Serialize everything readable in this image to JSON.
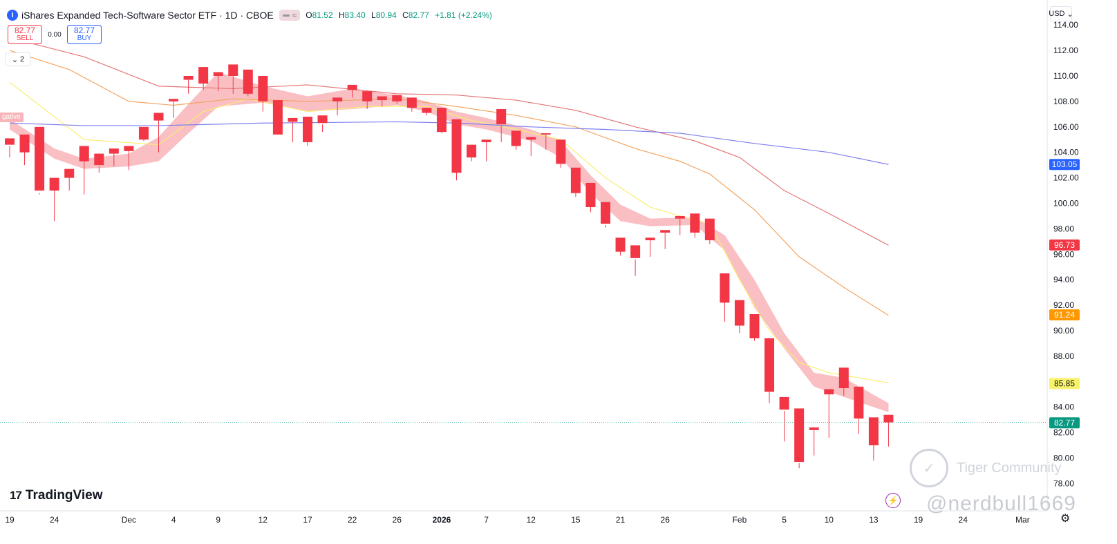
{
  "header": {
    "info_icon": "info-icon",
    "title": "iShares Expanded Tech-Software Sector ETF · 1D · CBOE",
    "chip_glyph": "≈",
    "ohlc": {
      "o_label": "O",
      "o": "81.52",
      "h_label": "H",
      "h": "83.40",
      "l_label": "L",
      "l": "80.94",
      "c_label": "C",
      "c": "82.77",
      "change": "+1.81 (+2.24%)"
    }
  },
  "trade": {
    "sell_price": "82.77",
    "sell_label": "SELL",
    "spread": "0.00",
    "buy_price": "82.77",
    "buy_label": "BUY"
  },
  "indicator_toggle": {
    "count": "2",
    "icon": "chevron-down-icon"
  },
  "currency": {
    "label": "USD",
    "icon": "chevron-down-icon"
  },
  "negative_tag": "gative",
  "branding": {
    "logo_mark": "17",
    "logo_text": "TradingView"
  },
  "watermark": {
    "text": "Tiger Community",
    "handle": "@nerdbull1669"
  },
  "colors": {
    "up": "#089981",
    "down": "#f23645",
    "band": "#f8b4b9",
    "ma_yellow": "#f9ee72",
    "ma_orange": "#f4a460",
    "ma_red": "#e57373",
    "ma_blue": "#7e7ef0",
    "tag_blue": "#2962ff",
    "tag_red": "#f23645",
    "tag_orange": "#ff9800",
    "tag_yellow": "#f9f36b"
  },
  "chart_data": {
    "type": "candlestick",
    "y_axis": {
      "range": [
        77.5,
        115
      ],
      "ticks": [
        "78.00",
        "80.00",
        "82.00",
        "84.00",
        "86.00",
        "88.00",
        "90.00",
        "92.00",
        "94.00",
        "96.00",
        "98.00",
        "100.00",
        "102.00",
        "104.00",
        "106.00",
        "108.00",
        "110.00",
        "112.00",
        "114.00"
      ]
    },
    "x_axis": {
      "ticks": [
        {
          "label": "19",
          "i": 0
        },
        {
          "label": "24",
          "i": 3
        },
        {
          "label": "Dec",
          "i": 8
        },
        {
          "label": "4",
          "i": 11
        },
        {
          "label": "9",
          "i": 14
        },
        {
          "label": "12",
          "i": 17
        },
        {
          "label": "17",
          "i": 20
        },
        {
          "label": "22",
          "i": 23
        },
        {
          "label": "26",
          "i": 26
        },
        {
          "label": "2026",
          "i": 29
        },
        {
          "label": "7",
          "i": 32
        },
        {
          "label": "12",
          "i": 35
        },
        {
          "label": "15",
          "i": 38
        },
        {
          "label": "21",
          "i": 41
        },
        {
          "label": "26",
          "i": 44
        },
        {
          "label": "Feb",
          "i": 49
        },
        {
          "label": "5",
          "i": 52
        },
        {
          "label": "10",
          "i": 55
        },
        {
          "label": "13",
          "i": 58
        },
        {
          "label": "19",
          "i": 61
        },
        {
          "label": "24",
          "i": 64
        },
        {
          "label": "Mar",
          "i": 68
        }
      ]
    },
    "candles": [
      [
        null,
        105.1,
        103.6,
        104.5,
        104.6
      ],
      [
        104.6,
        105.4,
        103.0,
        104.4,
        104.0
      ],
      [
        105.4,
        106.0,
        100.7,
        100.8,
        101.0
      ],
      [
        100.8,
        102.0,
        98.6,
        101.0,
        101.0
      ],
      [
        101.2,
        102.7,
        101.0,
        102.3,
        102.0
      ],
      [
        101.5,
        104.5,
        100.7,
        103.3,
        103.3
      ],
      [
        103.9,
        103.9,
        102.4,
        102.9,
        103.0
      ],
      [
        103.3,
        104.3,
        102.9,
        104.2,
        103.9
      ],
      [
        103.3,
        104.5,
        102.6,
        104.3,
        104.1
      ],
      [
        105.0,
        106.0,
        104.9,
        105.2,
        105.0
      ],
      [
        104.5,
        107.1,
        104.0,
        106.6,
        106.5
      ],
      [
        107.4,
        108.2,
        106.7,
        108.1,
        108.0
      ],
      [
        108.7,
        110.0,
        108.6,
        109.8,
        109.7
      ],
      [
        110.1,
        110.7,
        108.9,
        109.4,
        109.4
      ],
      [
        109.0,
        110.3,
        108.8,
        110.0,
        110.0
      ],
      [
        109.6,
        110.9,
        108.6,
        110.1,
        110.0
      ],
      [
        109.8,
        110.5,
        108.4,
        108.7,
        108.6
      ],
      [
        109.8,
        110.0,
        107.2,
        108.1,
        108.0
      ],
      [
        108.0,
        108.1,
        105.4,
        105.5,
        105.4
      ],
      [
        105.1,
        106.7,
        104.8,
        106.5,
        106.4
      ],
      [
        106.5,
        106.8,
        104.5,
        104.8,
        104.8
      ],
      [
        106.0,
        106.9,
        105.6,
        106.2,
        106.3
      ],
      [
        107.1,
        108.3,
        106.9,
        108.1,
        108.0
      ],
      [
        108.4,
        109.3,
        108.3,
        109.0,
        108.9
      ],
      [
        108.4,
        108.8,
        107.4,
        108.0,
        108.0
      ],
      [
        107.8,
        108.4,
        107.6,
        108.1,
        108.1
      ],
      [
        108.1,
        108.5,
        107.8,
        108.1,
        108.0
      ],
      [
        107.4,
        108.3,
        107.2,
        107.5,
        107.5
      ],
      [
        107.4,
        107.5,
        106.9,
        107.1,
        107.1
      ],
      [
        107.0,
        107.5,
        105.5,
        105.6,
        105.6
      ],
      [
        106.5,
        106.6,
        101.8,
        102.5,
        102.4
      ],
      [
        103.5,
        104.6,
        103.3,
        103.6,
        103.6
      ],
      [
        103.4,
        105.0,
        103.3,
        104.9,
        104.8
      ],
      [
        105.0,
        107.4,
        104.8,
        106.1,
        106.2
      ],
      [
        105.6,
        105.7,
        104.2,
        104.5,
        104.5
      ],
      [
        104.4,
        105.2,
        103.7,
        105.0,
        105.0
      ],
      [
        104.3,
        105.5,
        104.2,
        105.4,
        105.4
      ],
      [
        104.9,
        105.0,
        102.8,
        103.2,
        103.1
      ],
      [
        102.8,
        102.8,
        100.5,
        100.8,
        100.8
      ],
      [
        101.5,
        101.6,
        99.3,
        99.7,
        99.7
      ],
      [
        100.0,
        100.1,
        98.1,
        98.3,
        98.4
      ],
      [
        96.6,
        97.3,
        95.9,
        96.2,
        96.2
      ],
      [
        96.4,
        96.7,
        94.3,
        95.6,
        95.7
      ],
      [
        96.6,
        97.3,
        95.8,
        97.1,
        97.1
      ],
      [
        96.8,
        97.9,
        96.4,
        97.7,
        97.7
      ],
      [
        98.0,
        99.0,
        97.5,
        98.8,
        98.8
      ],
      [
        99.0,
        99.2,
        97.3,
        97.7,
        97.7
      ],
      [
        98.3,
        98.8,
        96.8,
        97.1,
        97.1
      ],
      [
        94.5,
        94.5,
        90.7,
        92.2,
        92.2
      ],
      [
        92.2,
        92.4,
        89.8,
        90.4,
        90.4
      ],
      [
        91.2,
        91.3,
        89.2,
        89.5,
        89.4
      ],
      [
        89.4,
        89.4,
        84.3,
        85.2,
        85.2
      ],
      [
        83.9,
        84.8,
        81.3,
        83.7,
        83.8
      ],
      [
        83.0,
        83.9,
        79.2,
        79.6,
        79.7
      ],
      [
        81.4,
        82.4,
        80.2,
        82.3,
        82.2
      ],
      [
        82.6,
        85.4,
        81.6,
        85.1,
        85.0
      ],
      [
        85.9,
        87.1,
        84.9,
        85.5,
        85.5
      ],
      [
        85.5,
        85.6,
        81.9,
        83.1,
        83.1
      ],
      [
        83.0,
        83.2,
        79.8,
        81.0,
        81.0
      ],
      [
        81.5,
        83.4,
        80.9,
        82.8,
        82.8
      ]
    ],
    "series": [
      {
        "color": "#f9ee72",
        "values": [
          [
            0,
            109.5
          ],
          [
            5,
            105.0
          ],
          [
            10,
            104.6
          ],
          [
            13,
            107.2
          ],
          [
            16,
            108.2
          ],
          [
            20,
            107.2
          ],
          [
            24,
            107.6
          ],
          [
            28,
            107.6
          ],
          [
            31,
            106.5
          ],
          [
            34,
            105.8
          ],
          [
            37,
            105.0
          ],
          [
            40,
            102.0
          ],
          [
            43,
            99.7
          ],
          [
            45,
            99.0
          ],
          [
            47,
            98.4
          ],
          [
            49,
            94.0
          ],
          [
            51,
            90.0
          ],
          [
            53,
            87.5
          ],
          [
            55,
            86.7
          ],
          [
            57,
            86.3
          ],
          [
            59,
            85.9
          ]
        ]
      },
      {
        "color": "#f4a460",
        "values": [
          [
            0,
            112.0
          ],
          [
            4,
            110.5
          ],
          [
            8,
            108.0
          ],
          [
            11,
            107.7
          ],
          [
            15,
            108.2
          ],
          [
            20,
            108.0
          ],
          [
            26,
            108.2
          ],
          [
            30,
            107.6
          ],
          [
            34,
            106.9
          ],
          [
            38,
            106.0
          ],
          [
            42,
            104.3
          ],
          [
            45,
            103.3
          ],
          [
            47,
            102.3
          ],
          [
            50,
            99.5
          ],
          [
            53,
            95.8
          ],
          [
            56,
            93.4
          ],
          [
            59,
            91.2
          ]
        ]
      },
      {
        "color": "#e57373",
        "values": [
          [
            0,
            113.0
          ],
          [
            5,
            111.5
          ],
          [
            10,
            109.2
          ],
          [
            15,
            109.0
          ],
          [
            20,
            109.3
          ],
          [
            26,
            108.6
          ],
          [
            30,
            108.5
          ],
          [
            34,
            108.1
          ],
          [
            38,
            107.3
          ],
          [
            42,
            106.0
          ],
          [
            46,
            104.9
          ],
          [
            49,
            103.6
          ],
          [
            52,
            101.0
          ],
          [
            55,
            99.2
          ],
          [
            59,
            96.7
          ]
        ]
      },
      {
        "color": "#7e7ef0",
        "values": [
          [
            0,
            106.3
          ],
          [
            5,
            106.1
          ],
          [
            10,
            106.1
          ],
          [
            17,
            106.3
          ],
          [
            26,
            106.4
          ],
          [
            30,
            106.3
          ],
          [
            35,
            106.0
          ],
          [
            40,
            105.8
          ],
          [
            45,
            105.5
          ],
          [
            50,
            104.7
          ],
          [
            55,
            104.0
          ],
          [
            59,
            103.05
          ]
        ]
      }
    ],
    "band": {
      "upper": [
        [
          0,
          106.6
        ],
        [
          3,
          104.3
        ],
        [
          5,
          103.5
        ],
        [
          8,
          103.9
        ],
        [
          10,
          105.2
        ],
        [
          12,
          107.8
        ],
        [
          14,
          110.3
        ],
        [
          17,
          109.2
        ],
        [
          20,
          108.4
        ],
        [
          23,
          109.0
        ],
        [
          26,
          108.5
        ],
        [
          28,
          108.0
        ],
        [
          30,
          107.2
        ],
        [
          32,
          106.7
        ],
        [
          35,
          105.8
        ],
        [
          37,
          104.9
        ],
        [
          39,
          102.2
        ],
        [
          41,
          99.9
        ],
        [
          43,
          98.8
        ],
        [
          46,
          98.9
        ],
        [
          48,
          97.5
        ],
        [
          50,
          94.0
        ],
        [
          52,
          89.8
        ],
        [
          54,
          86.7
        ],
        [
          56,
          86.3
        ],
        [
          59,
          84.3
        ]
      ],
      "lower": [
        [
          0,
          105.8
        ],
        [
          3,
          103.5
        ],
        [
          5,
          102.7
        ],
        [
          8,
          102.9
        ],
        [
          10,
          103.3
        ],
        [
          12,
          105.5
        ],
        [
          14,
          107.6
        ],
        [
          17,
          107.9
        ],
        [
          20,
          107.2
        ],
        [
          23,
          107.4
        ],
        [
          26,
          107.7
        ],
        [
          28,
          107.2
        ],
        [
          30,
          106.2
        ],
        [
          32,
          105.8
        ],
        [
          35,
          104.9
        ],
        [
          37,
          103.6
        ],
        [
          39,
          100.8
        ],
        [
          41,
          98.6
        ],
        [
          43,
          98.2
        ],
        [
          46,
          98.3
        ],
        [
          48,
          96.3
        ],
        [
          50,
          91.8
        ],
        [
          52,
          88.6
        ],
        [
          54,
          85.6
        ],
        [
          56,
          84.8
        ],
        [
          59,
          83.6
        ]
      ]
    },
    "price_tags": [
      {
        "value": 103.05,
        "label": "103.05",
        "bg": "#2962ff",
        "fg": "#ffffff"
      },
      {
        "value": 96.73,
        "label": "96.73",
        "bg": "#f23645",
        "fg": "#ffffff"
      },
      {
        "value": 91.24,
        "label": "91.24",
        "bg": "#ff9800",
        "fg": "#ffffff"
      },
      {
        "value": 85.85,
        "label": "85.85",
        "bg": "#f9f36b",
        "fg": "#131722"
      },
      {
        "value": 82.77,
        "label": "82.77",
        "bg": "#089981",
        "fg": "#ffffff"
      }
    ],
    "last_price": 82.77
  }
}
